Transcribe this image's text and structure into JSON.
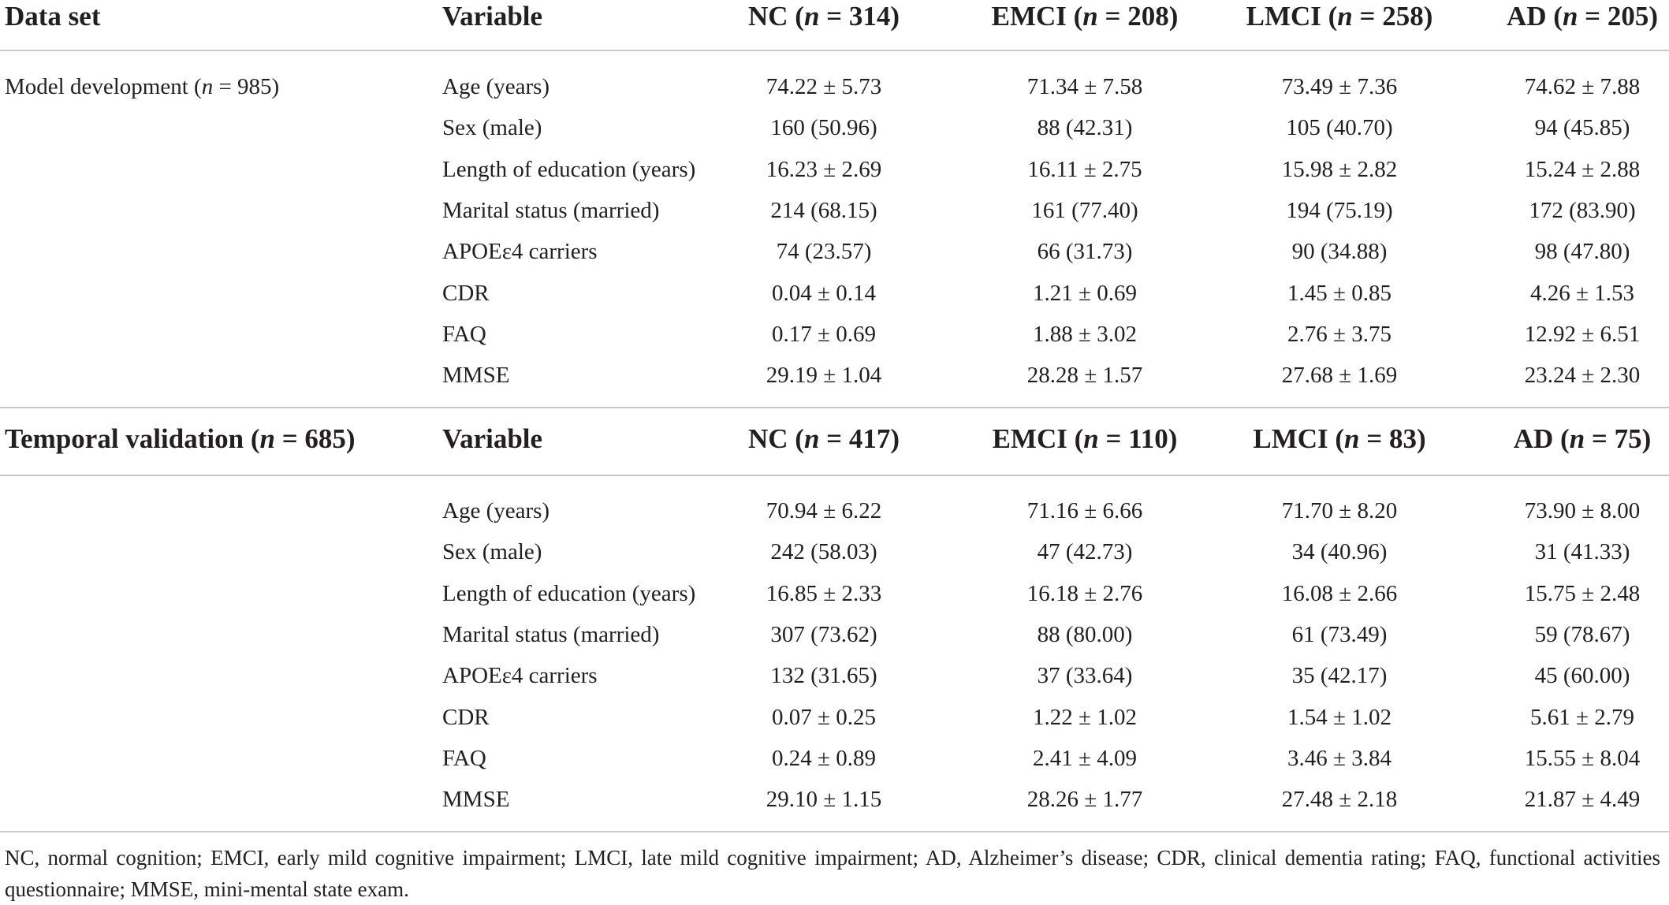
{
  "header1": {
    "col0": "Data set",
    "col1": "Variable",
    "groups": [
      {
        "label": "NC",
        "n": "314"
      },
      {
        "label": "EMCI",
        "n": "208"
      },
      {
        "label": "LMCI",
        "n": "258"
      },
      {
        "label": "AD",
        "n": "205"
      }
    ]
  },
  "section1": {
    "label": "Model development",
    "n": "985",
    "rows": [
      {
        "variable": "Age (years)",
        "values": [
          "74.22 ± 5.73",
          "71.34 ± 7.58",
          "73.49 ± 7.36",
          "74.62 ± 7.88"
        ]
      },
      {
        "variable": "Sex (male)",
        "values": [
          "160 (50.96)",
          "88 (42.31)",
          "105 (40.70)",
          "94 (45.85)"
        ]
      },
      {
        "variable": "Length of education (years)",
        "values": [
          "16.23 ± 2.69",
          "16.11 ± 2.75",
          "15.98 ± 2.82",
          "15.24 ± 2.88"
        ]
      },
      {
        "variable": "Marital status (married)",
        "values": [
          "214 (68.15)",
          "161 (77.40)",
          "194 (75.19)",
          "172 (83.90)"
        ]
      },
      {
        "variable": "APOEε4 carriers",
        "values": [
          "74 (23.57)",
          "66 (31.73)",
          "90 (34.88)",
          "98 (47.80)"
        ]
      },
      {
        "variable": "CDR",
        "values": [
          "0.04 ± 0.14",
          "1.21 ± 0.69",
          "1.45 ± 0.85",
          "4.26 ± 1.53"
        ]
      },
      {
        "variable": "FAQ",
        "values": [
          "0.17 ± 0.69",
          "1.88 ± 3.02",
          "2.76 ± 3.75",
          "12.92 ± 6.51"
        ]
      },
      {
        "variable": "MMSE",
        "values": [
          "29.19 ± 1.04",
          "28.28 ± 1.57",
          "27.68 ± 1.69",
          "23.24 ± 2.30"
        ]
      }
    ]
  },
  "header2": {
    "label": "Temporal validation",
    "n": "685",
    "col1": "Variable",
    "groups": [
      {
        "label": "NC",
        "n": "417"
      },
      {
        "label": "EMCI",
        "n": "110"
      },
      {
        "label": "LMCI",
        "n": "83"
      },
      {
        "label": "AD",
        "n": "75"
      }
    ]
  },
  "section2": {
    "rows": [
      {
        "variable": "Age (years)",
        "values": [
          "70.94 ± 6.22",
          "71.16 ± 6.66",
          "71.70 ± 8.20",
          "73.90 ± 8.00"
        ]
      },
      {
        "variable": "Sex (male)",
        "values": [
          "242 (58.03)",
          "47 (42.73)",
          "34 (40.96)",
          "31 (41.33)"
        ]
      },
      {
        "variable": "Length of education (years)",
        "values": [
          "16.85 ± 2.33",
          "16.18 ± 2.76",
          "16.08 ± 2.66",
          "15.75 ± 2.48"
        ]
      },
      {
        "variable": "Marital status (married)",
        "values": [
          "307 (73.62)",
          "88 (80.00)",
          "61 (73.49)",
          "59 (78.67)"
        ]
      },
      {
        "variable": "APOEε4 carriers",
        "values": [
          "132 (31.65)",
          "37 (33.64)",
          "35 (42.17)",
          "45 (60.00)"
        ]
      },
      {
        "variable": "CDR",
        "values": [
          "0.07 ± 0.25",
          "1.22 ± 1.02",
          "1.54 ± 1.02",
          "5.61 ± 2.79"
        ]
      },
      {
        "variable": "FAQ",
        "values": [
          "0.24 ± 0.89",
          "2.41 ± 4.09",
          "3.46 ± 3.84",
          "15.55 ± 8.04"
        ]
      },
      {
        "variable": "MMSE",
        "values": [
          "29.10 ± 1.15",
          "28.26 ± 1.77",
          "27.48 ± 2.18",
          "21.87 ± 4.49"
        ]
      }
    ]
  },
  "footnote": "NC, normal cognition; EMCI, early mild cognitive impairment; LMCI, late mild cognitive impairment; AD, Alzheimer’s disease; CDR, clinical dementia rating; FAQ, functional activities questionnaire; MMSE, mini-mental state exam."
}
